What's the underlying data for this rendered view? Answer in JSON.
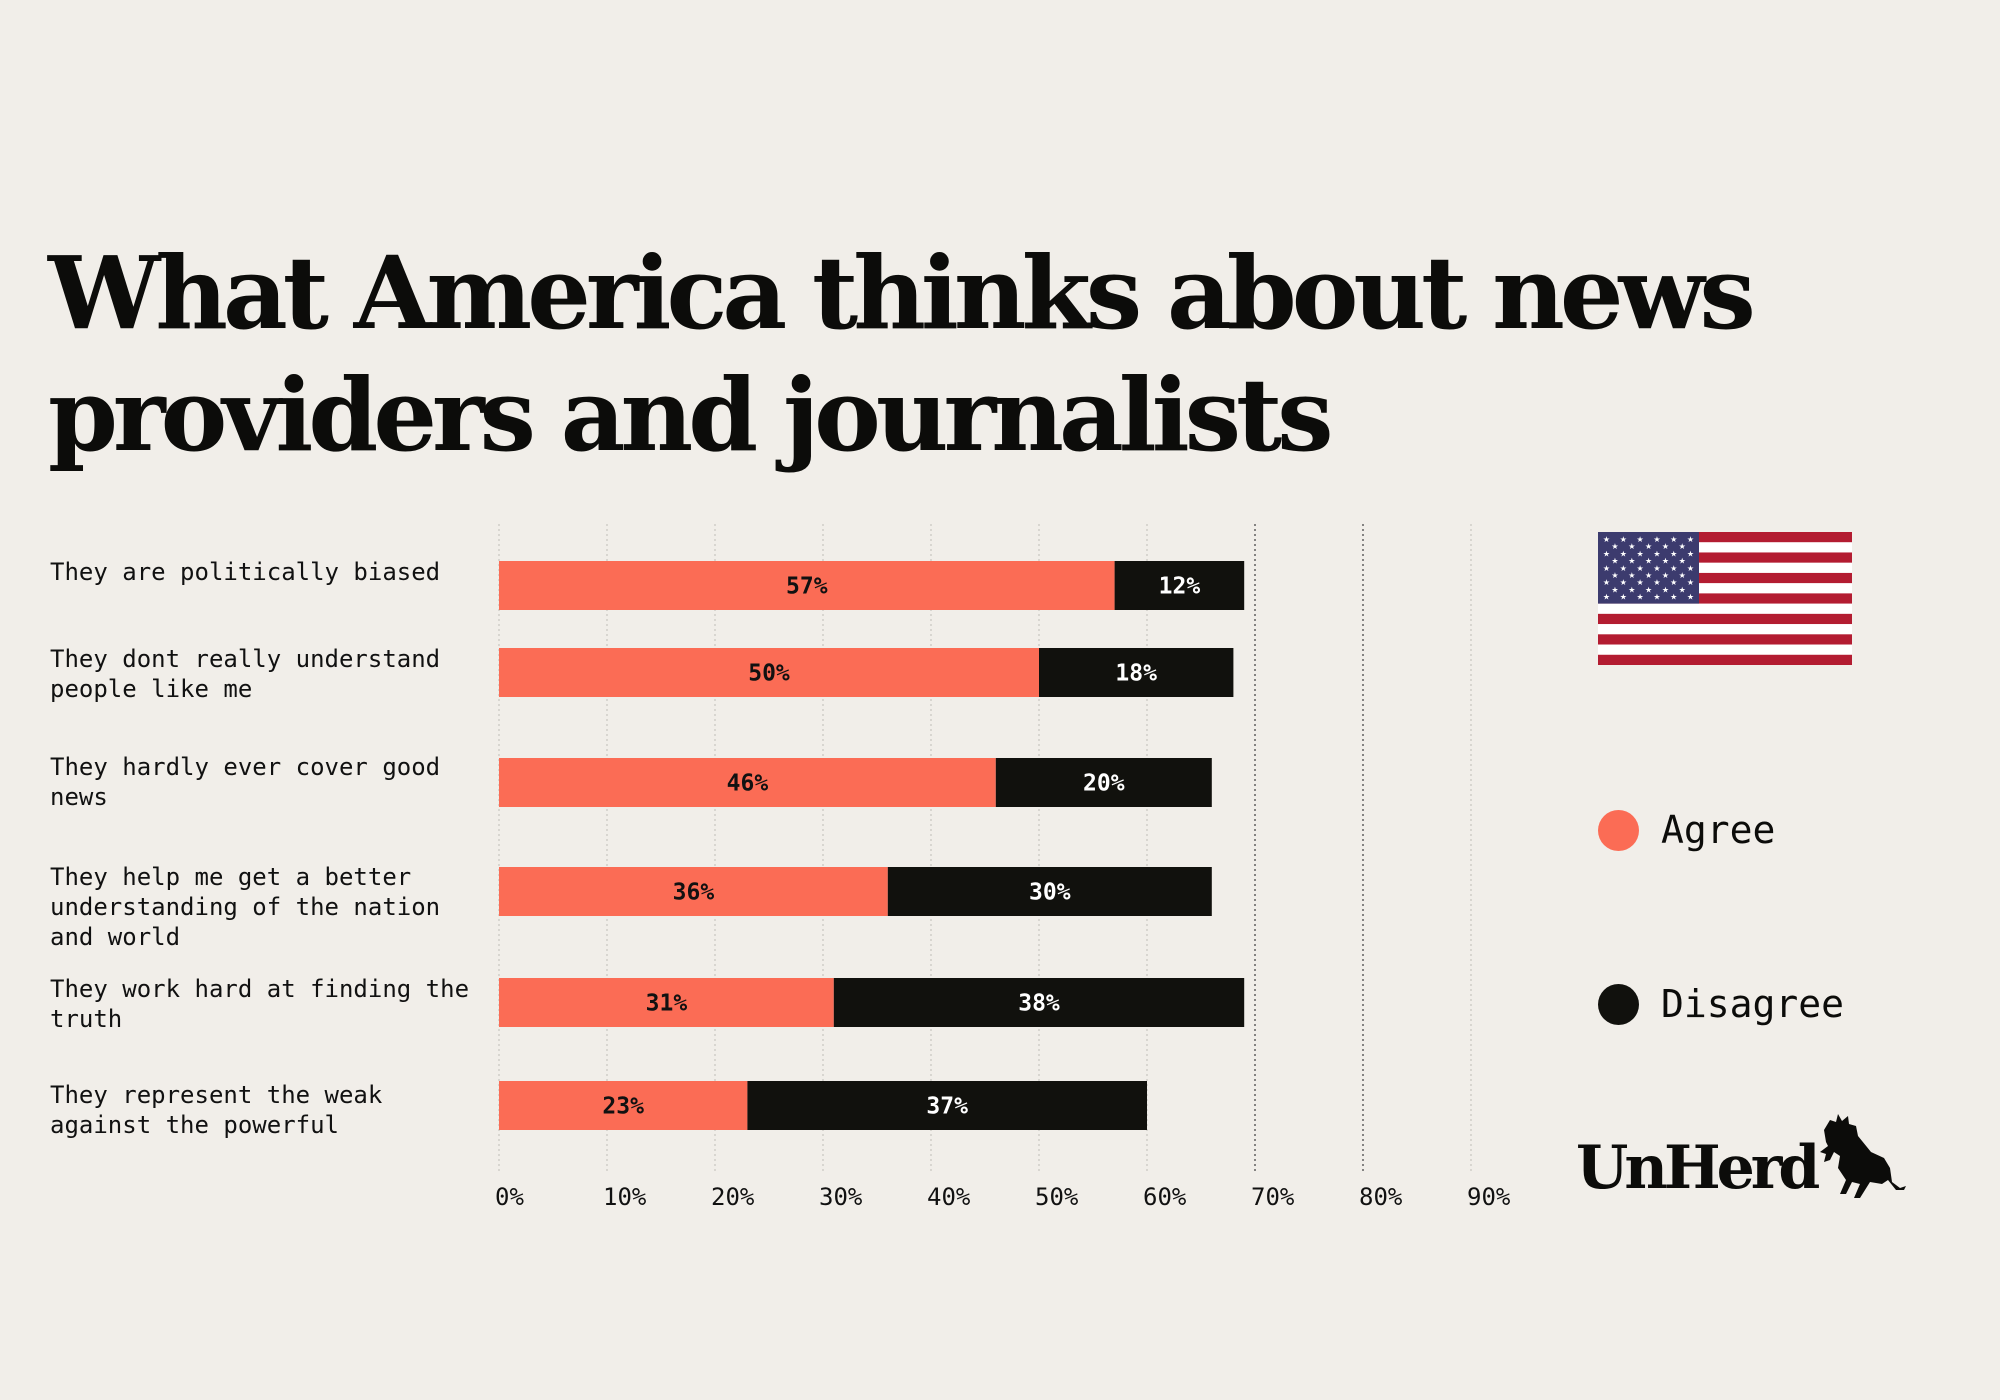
{
  "title": {
    "line1": "What America thinks about news",
    "line2": "providers and journalists"
  },
  "colors": {
    "agree": "#fb6c55",
    "disagree": "#11110d",
    "background": "#f1eee9"
  },
  "legend": {
    "agree": "Agree",
    "disagree": "Disagree"
  },
  "flag": {
    "name": "United States flag"
  },
  "logo": {
    "text": "UnHerd"
  },
  "chart_data": {
    "type": "bar",
    "orientation": "horizontal",
    "stacked": true,
    "title": "What America thinks about news providers and journalists",
    "xlabel": "",
    "ylabel": "",
    "xlim": [
      0,
      90
    ],
    "grid": true,
    "legend_position": "right",
    "categories": [
      "They are politically biased",
      "They dont really understand people like me",
      "They hardly ever cover good news",
      "They help me get a better understanding of the nation and world",
      "They work hard at finding the truth",
      "They represent the weak against the powerful"
    ],
    "category_lines": [
      [
        "They are politically biased"
      ],
      [
        "They dont really understand",
        "people like me"
      ],
      [
        "They hardly ever cover good",
        "news"
      ],
      [
        "They help me get a better",
        "understanding of the nation",
        "and world"
      ],
      [
        "They work hard at finding the",
        "truth"
      ],
      [
        "They represent the weak",
        "against the powerful"
      ]
    ],
    "series": [
      {
        "name": "Agree",
        "values": [
          57,
          50,
          46,
          36,
          31,
          23
        ],
        "labels": [
          "57%",
          "50%",
          "46%",
          "36%",
          "31%",
          "23%"
        ]
      },
      {
        "name": "Disagree",
        "values": [
          12,
          18,
          20,
          30,
          38,
          37
        ],
        "labels": [
          "12%",
          "18%",
          "20%",
          "30%",
          "38%",
          "37%"
        ]
      }
    ],
    "ticks": [
      0,
      10,
      20,
      30,
      40,
      50,
      60,
      70,
      80,
      90
    ],
    "tick_labels": [
      "0%",
      "10%",
      "20%",
      "30%",
      "40%",
      "50%",
      "60%",
      "70%",
      "80%",
      "90%"
    ]
  }
}
